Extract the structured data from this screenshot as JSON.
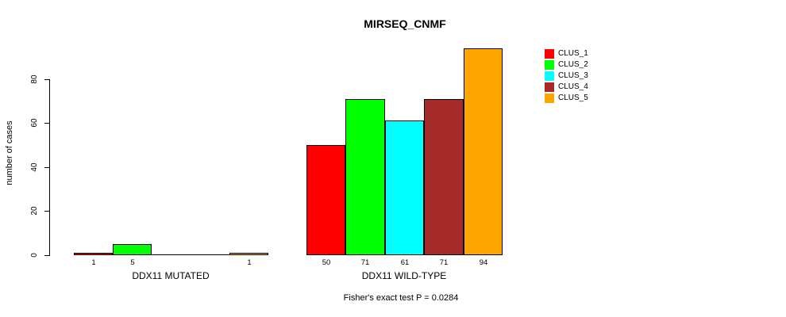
{
  "chart_data": {
    "type": "bar",
    "title": "MIRSEQ_CNMF",
    "ylabel": "number of cases",
    "ylim": [
      0,
      94
    ],
    "y_ticks": [
      0,
      20,
      40,
      60,
      80
    ],
    "grid": false,
    "legend_position": "right",
    "groups": [
      "DDX11 MUTATED",
      "DDX11 WILD-TYPE"
    ],
    "series": [
      {
        "name": "CLUS_1",
        "color": "#FF0000",
        "values": [
          1,
          50
        ]
      },
      {
        "name": "CLUS_2",
        "color": "#00FF00",
        "values": [
          5,
          71
        ]
      },
      {
        "name": "CLUS_3",
        "color": "#00FFFF",
        "values": [
          0,
          61
        ]
      },
      {
        "name": "CLUS_4",
        "color": "#A52A2A",
        "values": [
          0,
          71
        ]
      },
      {
        "name": "CLUS_5",
        "color": "#FFA500",
        "values": [
          1,
          94
        ]
      }
    ],
    "bar_labels": [
      [
        "1",
        "5",
        "",
        "",
        "1"
      ],
      [
        "50",
        "71",
        "61",
        "71",
        "94"
      ]
    ],
    "annotation": "Fisher's exact test P = 0.0284"
  }
}
